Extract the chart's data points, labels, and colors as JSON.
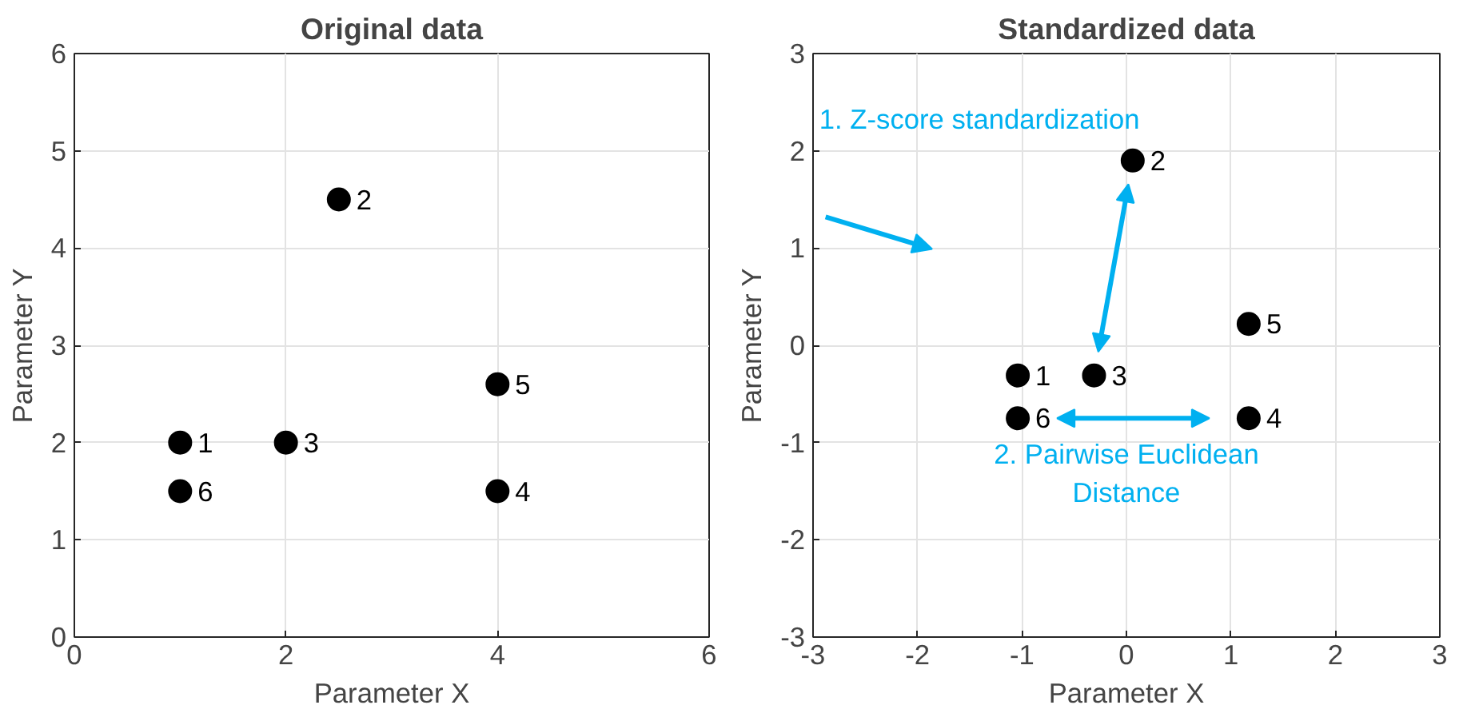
{
  "chart_data": [
    {
      "type": "scatter",
      "title": "Original data",
      "xlabel": "Parameter X",
      "ylabel": "Parameter Y",
      "x": [
        1,
        2.5,
        2,
        4,
        4,
        1
      ],
      "series": [
        {
          "color": "#000000",
          "values": [
            2,
            4.5,
            2,
            1.5,
            2.6,
            1.5
          ]
        }
      ],
      "xlim": [
        0,
        6
      ],
      "xticks": [
        0,
        2,
        4,
        6
      ],
      "ylim": [
        0,
        6
      ],
      "yticks": [
        0,
        1,
        2,
        3,
        4,
        5,
        6
      ],
      "grid": true,
      "marker": "circle",
      "annotations": [
        {
          "text": "1",
          "x": 1,
          "y": 2
        },
        {
          "text": "2",
          "x": 2.5,
          "y": 4.5
        },
        {
          "text": "3",
          "x": 2,
          "y": 2
        },
        {
          "text": "4",
          "x": 4,
          "y": 1.5
        },
        {
          "text": "5",
          "x": 4,
          "y": 2.6
        },
        {
          "text": "6",
          "x": 1,
          "y": 1.5
        }
      ]
    },
    {
      "type": "scatter",
      "title": "Standardized data",
      "xlabel": "Parameter X",
      "ylabel": "Parameter Y",
      "x": [
        -1.04,
        0.06,
        -0.31,
        1.17,
        1.17,
        -1.04
      ],
      "series": [
        {
          "color": "#000000",
          "values": [
            -0.31,
            1.9,
            -0.31,
            -0.75,
            0.22,
            -0.75
          ]
        }
      ],
      "xlim": [
        -3,
        3
      ],
      "xticks": [
        -3,
        -2,
        -1,
        0,
        1,
        2,
        3
      ],
      "ylim": [
        -3,
        3
      ],
      "yticks": [
        -3,
        -2,
        -1,
        0,
        1,
        2,
        3
      ],
      "grid": true,
      "marker": "circle",
      "annotations": [
        {
          "text": "1",
          "x": -1.04,
          "y": -0.31
        },
        {
          "text": "2",
          "x": 0.06,
          "y": 1.9
        },
        {
          "text": "3",
          "x": -0.31,
          "y": -0.31
        },
        {
          "text": "4",
          "x": 1.17,
          "y": -0.75
        },
        {
          "text": "5",
          "x": 1.17,
          "y": 0.22
        },
        {
          "text": "6",
          "x": -1.04,
          "y": -0.75
        },
        "1. Z-score standardization",
        "2. Pairwise Euclidean Distance"
      ]
    }
  ]
}
